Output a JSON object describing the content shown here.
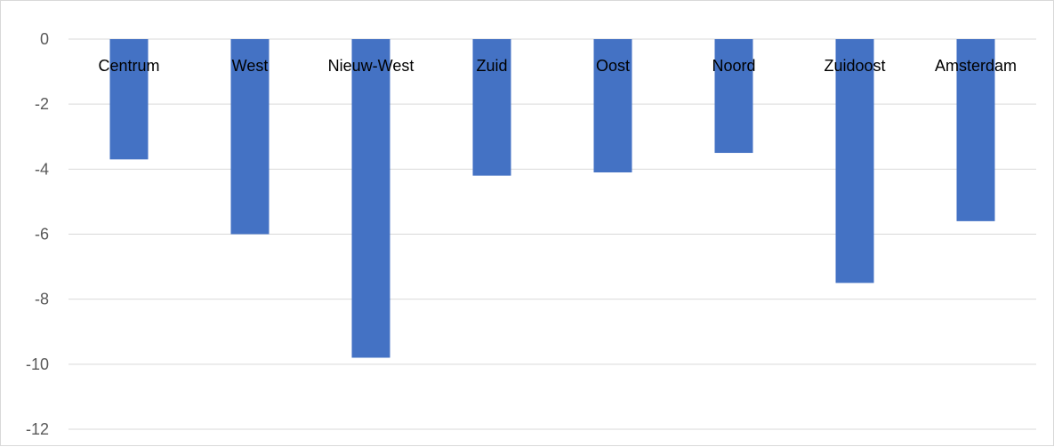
{
  "chart_data": {
    "type": "bar",
    "title": "",
    "xlabel": "",
    "ylabel": "",
    "categories": [
      "Centrum",
      "West",
      "Nieuw-West",
      "Zuid",
      "Oost",
      "Noord",
      "Zuidoost",
      "Amsterdam"
    ],
    "series": [
      {
        "values": [
          -3.7,
          -6.0,
          -9.8,
          -4.2,
          -4.1,
          -3.5,
          -7.5,
          -5.6
        ]
      }
    ],
    "ylim": [
      -12,
      0
    ],
    "yticks": [
      0,
      -2,
      -4,
      -6,
      -8,
      -10,
      -12
    ],
    "ytick_labels": [
      "0",
      "-2",
      "-4",
      "-6",
      "-8",
      "-10",
      "-12"
    ],
    "grid": true,
    "legend": "none",
    "colors": {
      "bar": "#4472c4",
      "grid": "#d9d9d9",
      "axis_text": "#595959",
      "category_text": "#000000"
    }
  }
}
